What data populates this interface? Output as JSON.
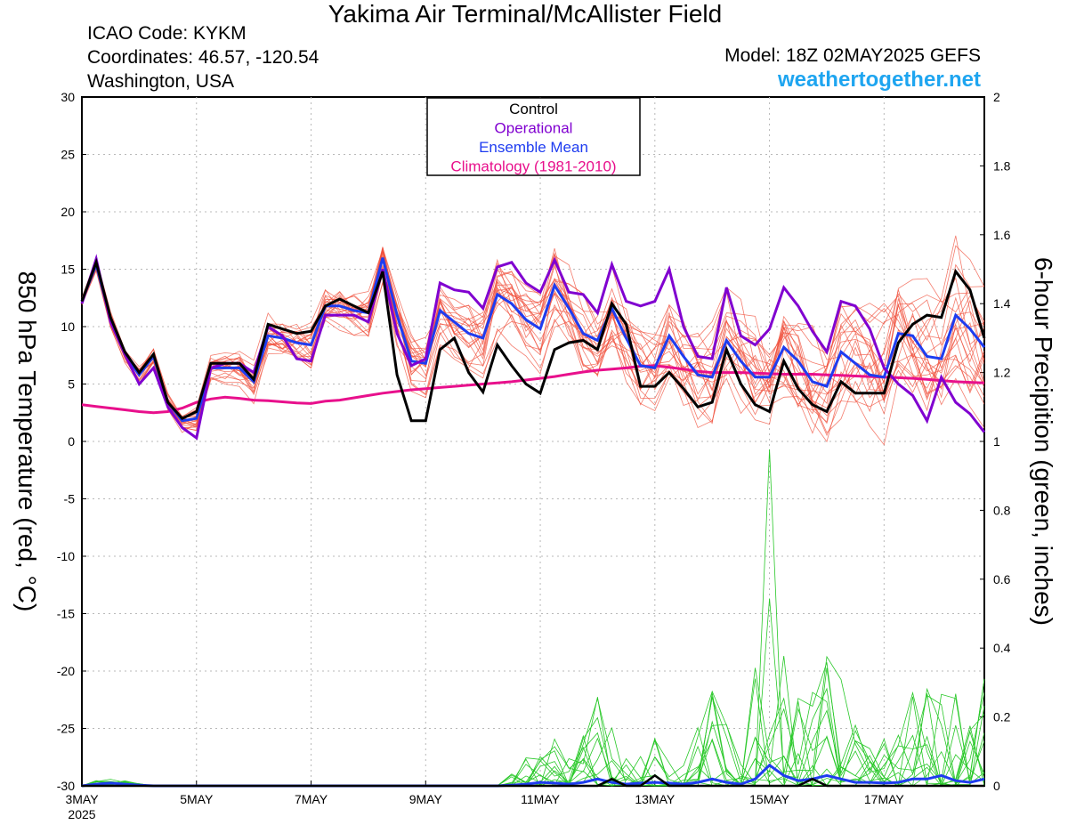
{
  "header": {
    "title": "Yakima Air Terminal/McAllister Field",
    "icao": "ICAO Code: KYKM",
    "coordinates": "Coordinates: 46.57, -120.54",
    "location": "Washington, USA",
    "model": "Model: 18Z 02MAY2025 GEFS",
    "site": "weathertogether.net"
  },
  "colors": {
    "member": "#f0503c",
    "control": "#000000",
    "operational": "#8000d0",
    "mean": "#1e3cf0",
    "climatology": "#e8108c",
    "precip_member": "#28c828",
    "site": "#1ea5f0"
  },
  "chart_data": {
    "type": "line",
    "ylabel": "850 hPa Temperature (red, °C)",
    "y2label": "6-hour Precipition (green, inches)",
    "ylim": [
      -30,
      30
    ],
    "yticks": [
      "30",
      "25",
      "20",
      "15",
      "10",
      "5",
      "0",
      "-5",
      "-10",
      "-15",
      "-20",
      "-25",
      "-30"
    ],
    "y2lim": [
      0,
      2
    ],
    "y2ticks": [
      "2",
      "1.8",
      "1.6",
      "1.4",
      "1.2",
      "1",
      "0.8",
      "0.6",
      "0.4",
      "0.2",
      "0"
    ],
    "xlim": [
      0,
      63
    ],
    "xticks": [
      {
        "x": 0,
        "label": "3MAY",
        "sub": "2025"
      },
      {
        "x": 8,
        "label": "5MAY"
      },
      {
        "x": 16,
        "label": "7MAY"
      },
      {
        "x": 24,
        "label": "9MAY"
      },
      {
        "x": 32,
        "label": "11MAY"
      },
      {
        "x": 40,
        "label": "13MAY"
      },
      {
        "x": 48,
        "label": "15MAY"
      },
      {
        "x": 56,
        "label": "17MAY"
      }
    ],
    "grid": true,
    "legend": {
      "position": "top-center",
      "entries": [
        {
          "label": "Control",
          "color": "#000000"
        },
        {
          "label": "Operational",
          "color": "#8000d0"
        },
        {
          "label": "Ensemble Mean",
          "color": "#1e3cf0"
        },
        {
          "label": "Climatology (1981-2010)",
          "color": "#e8108c"
        }
      ]
    },
    "temperature": {
      "control": [
        12.2,
        15.6,
        10.8,
        7.8,
        6.0,
        7.6,
        3.4,
        2.0,
        2.6,
        6.8,
        6.8,
        6.8,
        5.4,
        10.2,
        9.8,
        9.4,
        9.6,
        11.8,
        12.4,
        11.8,
        11.2,
        14.8,
        5.8,
        1.8,
        1.8,
        8.0,
        9.0,
        6.0,
        4.3,
        8.4,
        6.6,
        5.0,
        4.2,
        8.0,
        8.6,
        8.8,
        8.0,
        12.0,
        10.2,
        4.8,
        4.8,
        6.0,
        4.6,
        3.0,
        3.4,
        8.0,
        5.0,
        3.2,
        2.6,
        7.0,
        4.6,
        3.2,
        2.6,
        5.2,
        4.2,
        4.2,
        4.2,
        8.6,
        10.2,
        11.0,
        10.8,
        14.8,
        13.2,
        9.0
      ],
      "operational": [
        12.0,
        15.9,
        10.4,
        7.6,
        5.0,
        6.4,
        3.0,
        1.2,
        0.3,
        6.4,
        6.8,
        6.8,
        6.0,
        10.0,
        9.2,
        7.2,
        7.0,
        11.0,
        11.0,
        11.0,
        10.4,
        15.0,
        9.4,
        6.6,
        7.2,
        13.8,
        13.2,
        13.0,
        11.6,
        15.2,
        15.6,
        13.8,
        13.0,
        15.8,
        13.0,
        12.8,
        11.2,
        15.4,
        12.2,
        11.8,
        12.2,
        15.0,
        10.0,
        7.4,
        7.2,
        13.4,
        9.2,
        8.4,
        9.8,
        13.4,
        11.8,
        9.6,
        7.8,
        12.2,
        11.8,
        9.8,
        6.4,
        5.0,
        4.0,
        1.8,
        5.6,
        3.4,
        2.4,
        0.8
      ],
      "mean": [
        12.2,
        15.4,
        10.6,
        7.6,
        5.8,
        7.4,
        3.4,
        1.8,
        2.0,
        6.4,
        6.4,
        6.4,
        5.2,
        9.2,
        9.0,
        8.6,
        8.4,
        11.8,
        11.8,
        11.4,
        11.2,
        16.0,
        11.0,
        7.0,
        6.8,
        11.4,
        10.4,
        9.4,
        9.0,
        12.8,
        12.0,
        10.6,
        9.8,
        13.6,
        11.6,
        9.4,
        8.8,
        11.6,
        9.0,
        6.6,
        6.4,
        9.2,
        7.4,
        5.8,
        5.6,
        8.8,
        7.0,
        5.6,
        5.6,
        8.2,
        7.0,
        5.2,
        4.8,
        7.8,
        6.8,
        5.8,
        5.6,
        9.4,
        9.2,
        7.4,
        7.2,
        11.0,
        9.8,
        8.2
      ],
      "climatology": [
        3.2,
        3.05,
        2.9,
        2.75,
        2.6,
        2.5,
        2.6,
        2.9,
        3.4,
        3.7,
        3.85,
        3.75,
        3.6,
        3.55,
        3.45,
        3.35,
        3.3,
        3.5,
        3.6,
        3.8,
        4.0,
        4.2,
        4.35,
        4.5,
        4.6,
        4.7,
        4.8,
        4.9,
        5.0,
        5.1,
        5.2,
        5.35,
        5.5,
        5.65,
        5.85,
        6.05,
        6.2,
        6.3,
        6.4,
        6.55,
        6.6,
        6.45,
        6.3,
        6.1,
        6.0,
        6.0,
        6.0,
        5.95,
        5.9,
        5.85,
        5.85,
        5.85,
        5.8,
        5.75,
        5.7,
        5.65,
        5.6,
        5.55,
        5.5,
        5.4,
        5.3,
        5.2,
        5.15,
        5.1
      ]
    },
    "precipitation": {
      "control": [
        0,
        0,
        0,
        0,
        0,
        0,
        0,
        0,
        0,
        0,
        0,
        0,
        0,
        0,
        0,
        0,
        0,
        0,
        0,
        0,
        0,
        0,
        0,
        0,
        0,
        0,
        0,
        0,
        0,
        0,
        0,
        0,
        0,
        0,
        0,
        0,
        0,
        0.02,
        0,
        0,
        0.03,
        0,
        0,
        0,
        0,
        0,
        0,
        0,
        0,
        0,
        0,
        0.02,
        0,
        0,
        0,
        0,
        0,
        0,
        0,
        0,
        0,
        0,
        0,
        0
      ],
      "mean": [
        0,
        0.005,
        0.008,
        0.005,
        0.002,
        0,
        0,
        0,
        0,
        0,
        0,
        0,
        0,
        0,
        0,
        0,
        0,
        0,
        0,
        0,
        0,
        0,
        0,
        0,
        0,
        0,
        0,
        0,
        0,
        0,
        0.002,
        0.005,
        0.01,
        0.008,
        0.005,
        0.01,
        0.02,
        0.01,
        0.005,
        0.008,
        0.01,
        0.008,
        0.005,
        0.01,
        0.02,
        0.01,
        0.005,
        0.02,
        0.06,
        0.03,
        0.015,
        0.02,
        0.03,
        0.02,
        0.01,
        0.01,
        0.008,
        0.01,
        0.02,
        0.02,
        0.03,
        0.015,
        0.01,
        0.02
      ]
    }
  }
}
